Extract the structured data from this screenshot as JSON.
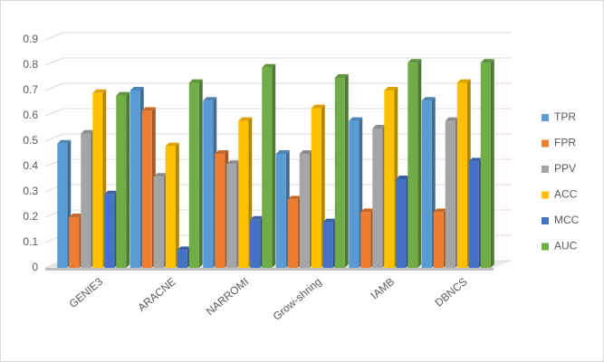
{
  "chart_data": {
    "type": "bar3d",
    "categories": [
      "GENIE3",
      "ARACNE",
      "NARROMI",
      "Grow-shring",
      "IAMB",
      "DBNCS"
    ],
    "series": [
      {
        "name": "TPR",
        "color": "#5b9bd5",
        "values": [
          0.49,
          0.7,
          0.66,
          0.45,
          0.58,
          0.66
        ]
      },
      {
        "name": "FPR",
        "color": "#ed7d31",
        "values": [
          0.2,
          0.62,
          0.45,
          0.27,
          0.22,
          0.22
        ]
      },
      {
        "name": "PPV",
        "color": "#a5a5a5",
        "values": [
          0.53,
          0.36,
          0.41,
          0.45,
          0.55,
          0.58
        ]
      },
      {
        "name": "ACC",
        "color": "#ffc000",
        "values": [
          0.69,
          0.48,
          0.58,
          0.63,
          0.7,
          0.73
        ]
      },
      {
        "name": "MCC",
        "color": "#4472c4",
        "values": [
          0.29,
          0.07,
          0.19,
          0.18,
          0.35,
          0.42
        ]
      },
      {
        "name": "AUC",
        "color": "#70ad47",
        "values": [
          0.68,
          0.73,
          0.79,
          0.75,
          0.81,
          0.81
        ]
      }
    ],
    "ylim": [
      0,
      0.9
    ],
    "yticks": [
      0,
      0.1,
      0.2,
      0.3,
      0.4,
      0.5,
      0.6,
      0.7,
      0.8,
      0.9
    ],
    "grid": true,
    "legend": "right"
  }
}
